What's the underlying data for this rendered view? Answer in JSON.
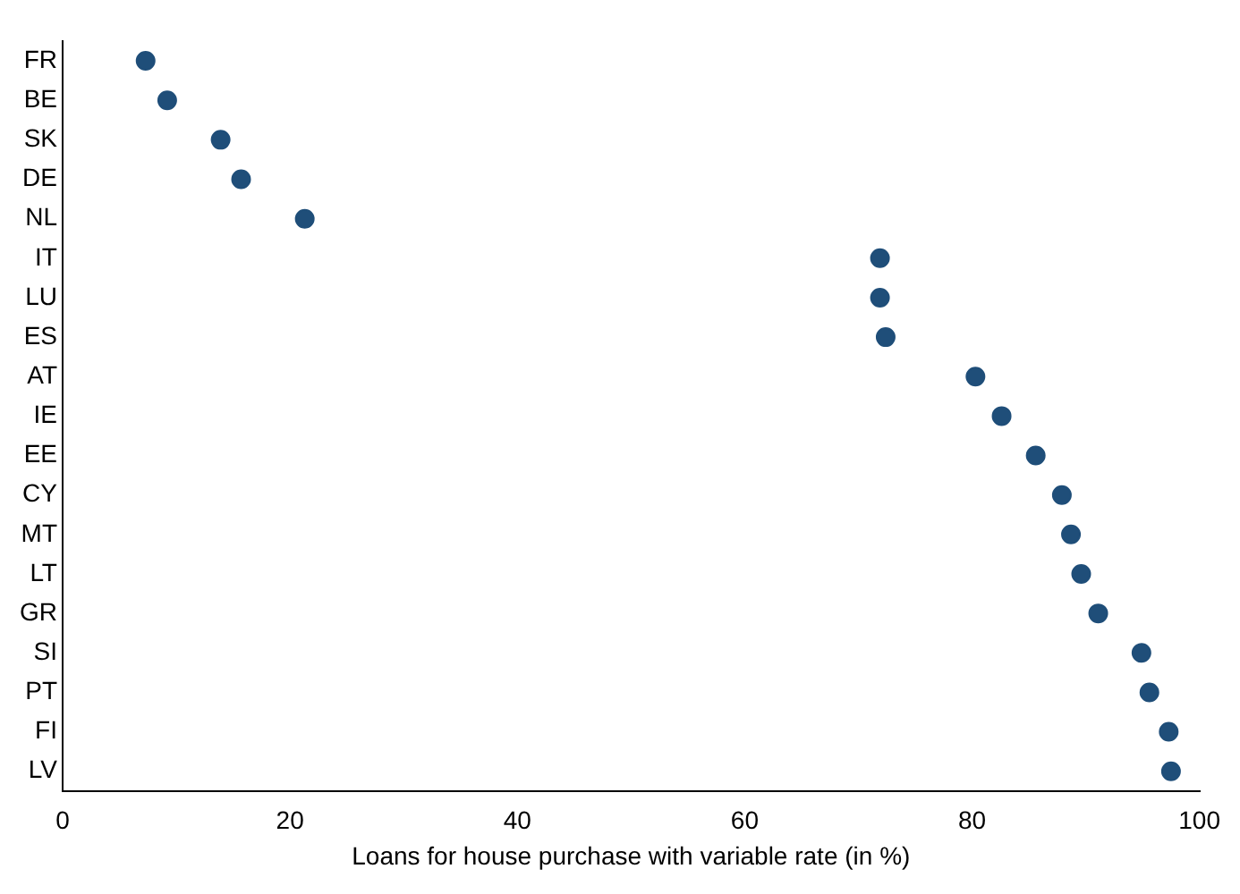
{
  "chart_data": {
    "type": "scatter",
    "xlabel": "Loans for house purchase with variable rate (in %)",
    "categories": [
      "FR",
      "BE",
      "SK",
      "DE",
      "NL",
      "IT",
      "LU",
      "ES",
      "AT",
      "IE",
      "EE",
      "CY",
      "MT",
      "LT",
      "GR",
      "SI",
      "PT",
      "FI",
      "LV"
    ],
    "orientation": "horizontal",
    "series": [
      {
        "color": "#1f4e79",
        "values": [
          7.3,
          9.2,
          13.9,
          15.7,
          21.3,
          71.9,
          71.9,
          72.4,
          80.3,
          82.6,
          85.6,
          87.9,
          88.7,
          89.6,
          91.1,
          94.9,
          95.6,
          97.3,
          97.5
        ]
      }
    ],
    "xlim": [
      0,
      100
    ],
    "xticks": [
      0,
      20,
      40,
      60,
      80,
      100
    ],
    "grid": false,
    "legend": false,
    "marker": "circle"
  }
}
